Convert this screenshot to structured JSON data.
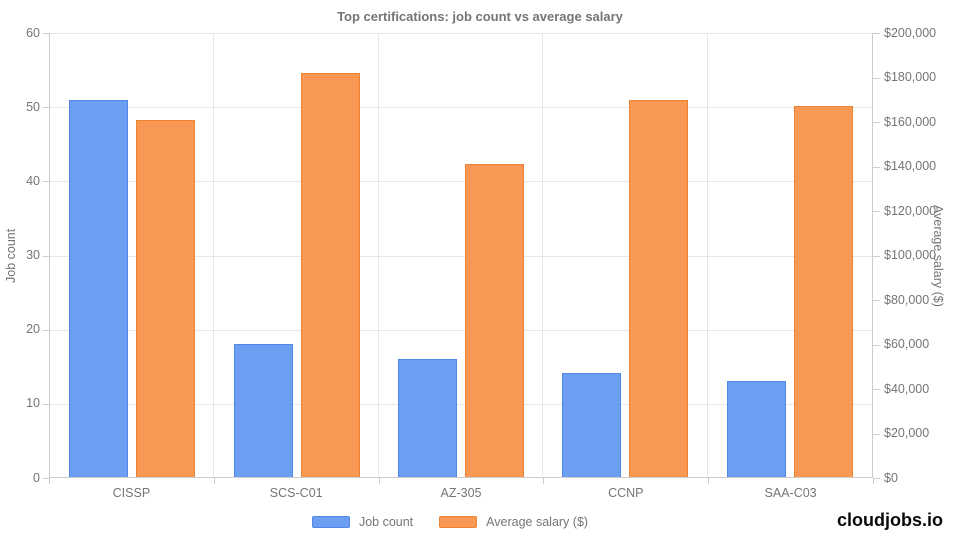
{
  "brand": "cloudjobs.io",
  "chart_data": {
    "type": "bar",
    "title": "Top certifications: job count vs average salary",
    "categories": [
      "CISSP",
      "SCS-C01",
      "AZ-305",
      "CCNP",
      "SAA-C03"
    ],
    "series": [
      {
        "name": "Job count",
        "axis": "left",
        "color": "#6c9ff2",
        "border_color": "#5286e8",
        "values": [
          51,
          18,
          16,
          14,
          13
        ]
      },
      {
        "name": "Average salary ($)",
        "axis": "right",
        "color": "#f99852",
        "border_color": "#ef8231",
        "values": [
          161000,
          182000,
          141000,
          170000,
          167000
        ]
      }
    ],
    "left_axis": {
      "label": "Job count",
      "min": 0,
      "max": 60,
      "ticks": [
        0,
        10,
        20,
        30,
        40,
        50,
        60
      ]
    },
    "right_axis": {
      "label": "Average salary ($)",
      "min": 0,
      "max": 200000,
      "tick_step": 20000,
      "tick_labels": [
        "$0",
        "$20,000",
        "$40,000",
        "$60,000",
        "$80,000",
        "$100,000",
        "$120,000",
        "$140,000",
        "$160,000",
        "$180,000",
        "$200,000"
      ]
    },
    "legend": {
      "position": "bottom"
    },
    "grid": true
  }
}
